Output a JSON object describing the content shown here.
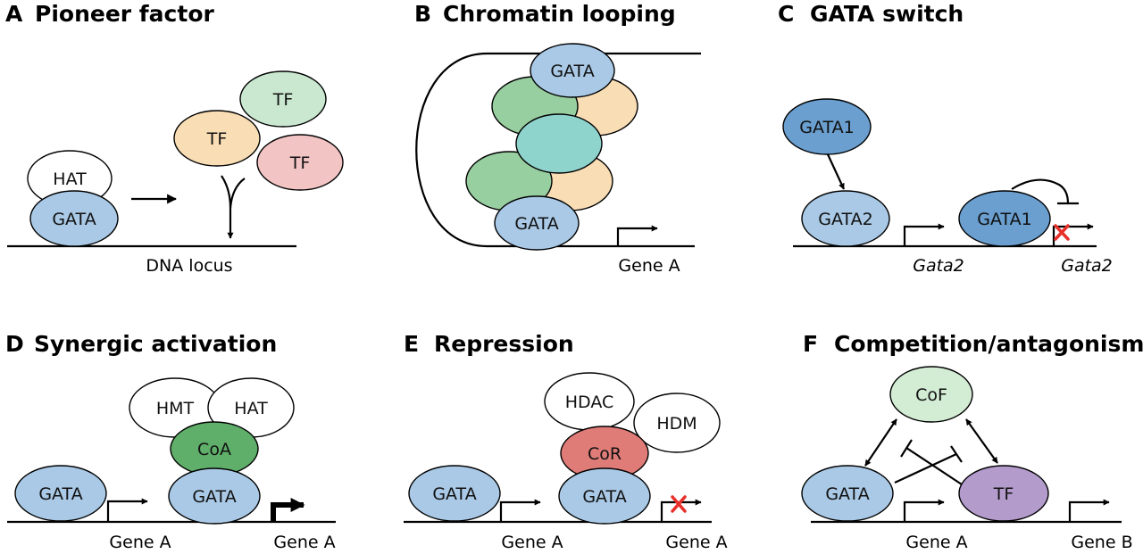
{
  "panels": {
    "a": {
      "letter": "A",
      "title": "Pioneer factor",
      "hat": "HAT",
      "gata": "GATA",
      "tf_green": "TF",
      "tf_orange": "TF",
      "tf_pink": "TF",
      "dna": "DNA locus"
    },
    "b": {
      "letter": "B",
      "title": "Chromatin looping",
      "gata_top": "GATA",
      "gata_bottom": "GATA",
      "gene": "Gene A"
    },
    "c": {
      "letter": "C",
      "title": "GATA switch",
      "gata1_top": "GATA1",
      "gata2": "GATA2",
      "gata1_bound": "GATA1",
      "gene_left": "Gata2",
      "gene_right": "Gata2"
    },
    "d": {
      "letter": "D",
      "title": "Synergic activation",
      "hmt": "HMT",
      "hat": "HAT",
      "coa": "CoA",
      "gata_left": "GATA",
      "gata_right": "GATA",
      "gene_left": "Gene A",
      "gene_right": "Gene A"
    },
    "e": {
      "letter": "E",
      "title": "Repression",
      "hdac": "HDAC",
      "hdm": "HDM",
      "cor": "CoR",
      "gata_left": "GATA",
      "gata_right": "GATA",
      "gene_left": "Gene A",
      "gene_right": "Gene A"
    },
    "f": {
      "letter": "F",
      "title": "Competition/antagonism",
      "cof": "CoF",
      "gata": "GATA",
      "tf": "TF",
      "gene_a": "Gene A",
      "gene_b": "Gene B"
    }
  },
  "colors": {
    "gata_blue": "#a9c9e6",
    "gata1_dark_blue": "#6a9fd0",
    "tf_green": "#c9e8cf",
    "tf_orange": "#f9ddb5",
    "tf_pink": "#f2c4c4",
    "cofactor_green": "#98cfa0",
    "cofactor_teal": "#8fd3cd",
    "coa_green": "#5fae6a",
    "cor_red": "#e07c78",
    "cof_light_green": "#d3ecd4",
    "tf_purple": "#b39bcc",
    "block_red": "#e8302a"
  }
}
